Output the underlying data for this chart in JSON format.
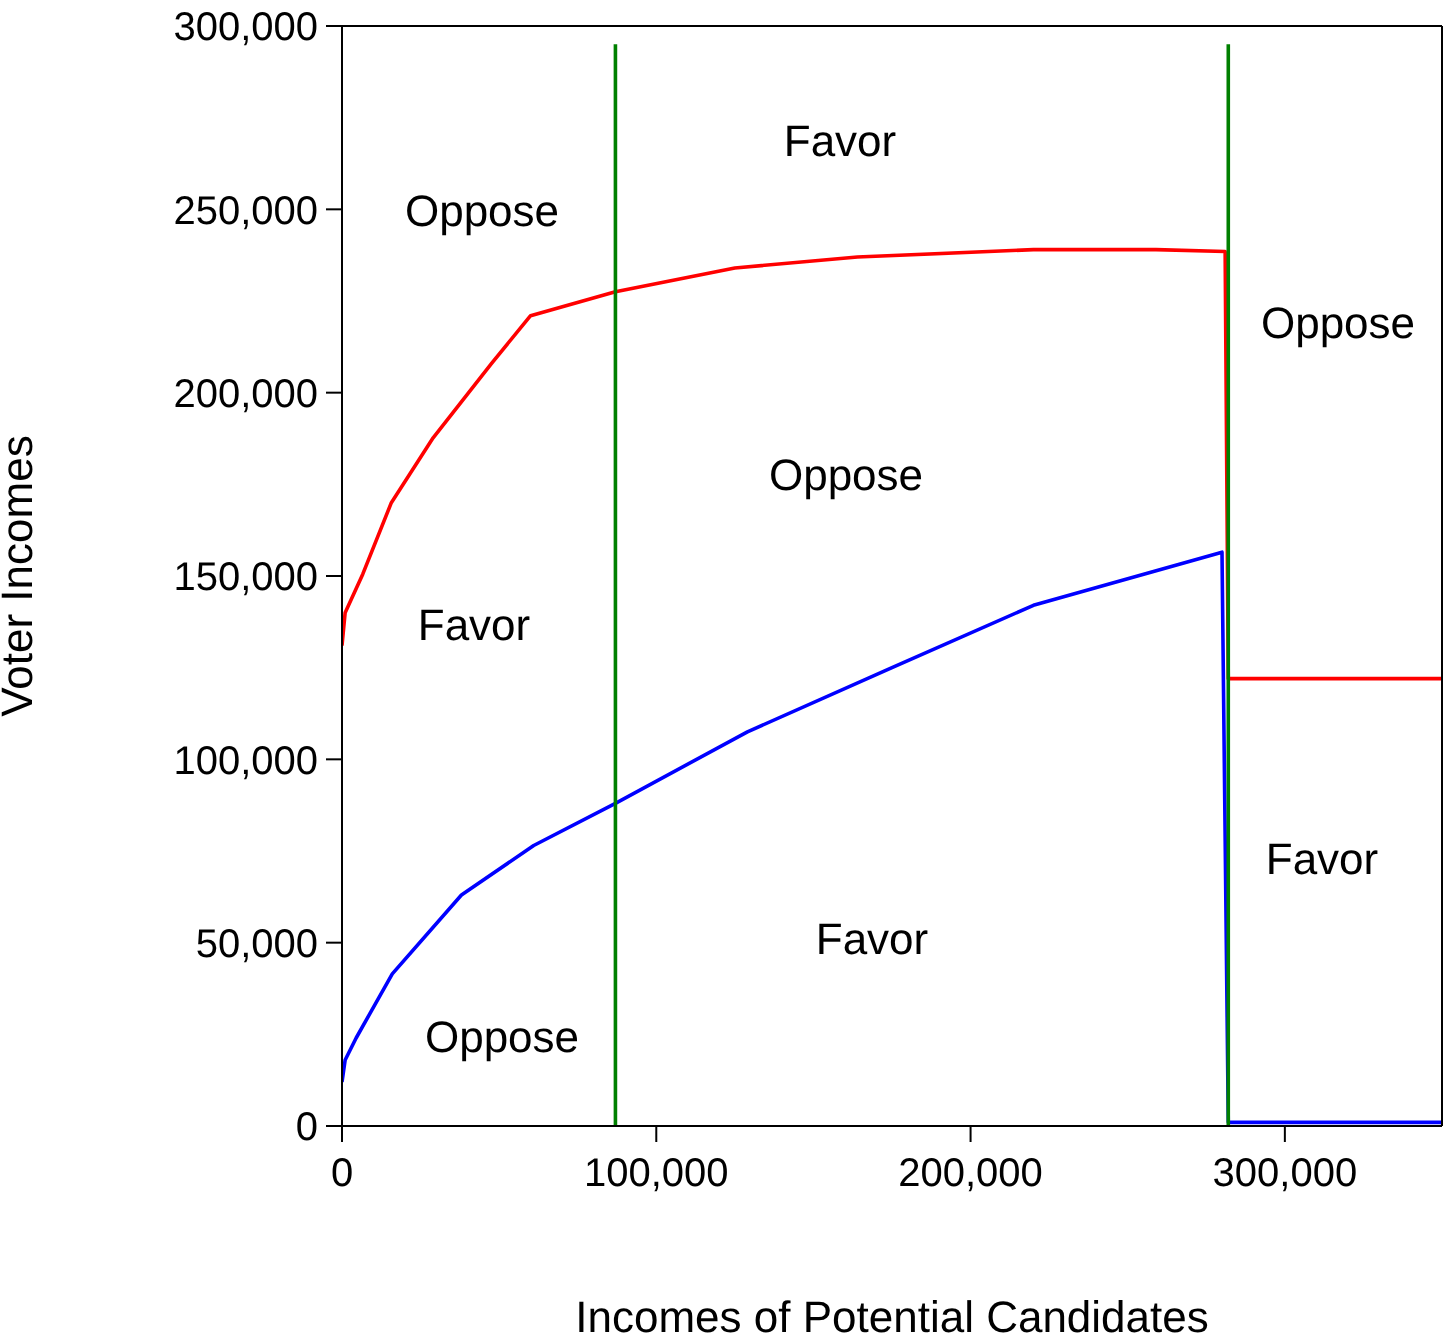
{
  "chart_data": {
    "type": "line",
    "xlabel": "Incomes of Potential Candidates",
    "ylabel": "Voter Incomes",
    "xlim": [
      0,
      350000
    ],
    "xticks": [
      0,
      {
        "value": 100000,
        "label": "100,000"
      },
      {
        "value": 200000,
        "label": "200,000"
      },
      {
        "value": 300000,
        "label": "300,000"
      }
    ],
    "ylim": [
      0,
      300000
    ],
    "yticks": [
      0,
      {
        "value": 50000,
        "label": "50,000"
      },
      {
        "value": 100000,
        "label": "100,000"
      },
      {
        "value": 150000,
        "label": "150,000"
      },
      {
        "value": 200000,
        "label": "200,000"
      },
      {
        "value": 250000,
        "label": "250,000"
      },
      {
        "value": 300000,
        "label": "300,000"
      }
    ],
    "marker": "none",
    "line_style": "solid",
    "series": [
      {
        "color": "#ff0000",
        "x": [
          0,
          1000,
          6600,
          15700,
          29000,
          47600,
          60000,
          87000,
          125000,
          164000,
          220000,
          259000,
          281000,
          282000,
          350000
        ],
        "values": [
          131000,
          140000,
          150500,
          170000,
          187700,
          208000,
          221000,
          227500,
          234000,
          237000,
          239000,
          239000,
          238500,
          122000,
          122000
        ]
      },
      {
        "color": "#0000ff",
        "x": [
          0,
          1000,
          4500,
          16000,
          38000,
          61000,
          87000,
          129000,
          175000,
          220000,
          280000,
          282000,
          350000
        ],
        "values": [
          12000,
          18000,
          24000,
          41500,
          63000,
          76500,
          88000,
          107500,
          125000,
          142000,
          156500,
          1000,
          1000
        ]
      },
      {
        "color": "#008000",
        "x": [
          87000,
          87000
        ],
        "values": [
          0,
          295000
        ]
      },
      {
        "color": "#008000",
        "x": [
          282000,
          282000
        ],
        "values": [
          0,
          295000
        ]
      }
    ],
    "annotations": [
      "Oppose",
      "Favor",
      "Oppose",
      "Oppose",
      "Favor",
      "Favor",
      "Favor",
      "Oppose"
    ]
  }
}
